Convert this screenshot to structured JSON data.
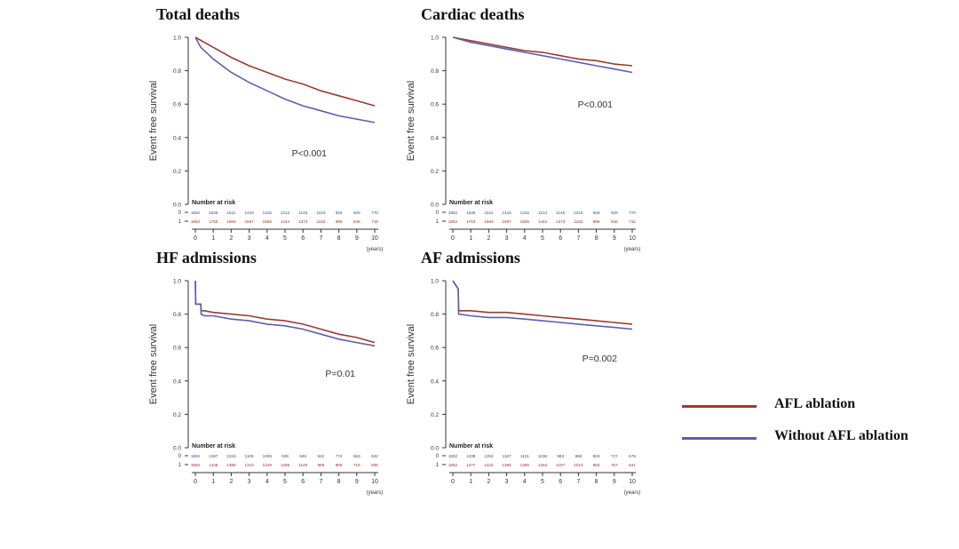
{
  "legend": {
    "items": [
      {
        "label": "AFL ablation",
        "color": "#9b3b2e"
      },
      {
        "label": "Without AFL ablation",
        "color": "#5a5fb0"
      }
    ]
  },
  "chart_data": [
    {
      "type": "line",
      "title": "Total deaths",
      "ylabel": "Event free survival",
      "xlabel": "(years)",
      "xlim": [
        0,
        10
      ],
      "ylim": [
        0,
        1
      ],
      "y_ticks": [
        "0.0",
        "0.2",
        "0.4",
        "0.6",
        "0.8",
        "1.0"
      ],
      "x_ticks": [
        "0",
        "1",
        "2",
        "3",
        "4",
        "5",
        "6",
        "7",
        "8",
        "9",
        "10"
      ],
      "p_value": "P<0.001",
      "series": [
        {
          "name": "AFL ablation",
          "color": "#9b3b2e",
          "x": [
            0,
            1,
            2,
            3,
            4,
            5,
            6,
            7,
            8,
            9,
            10
          ],
          "y": [
            1.0,
            0.94,
            0.88,
            0.83,
            0.79,
            0.75,
            0.72,
            0.68,
            0.65,
            0.62,
            0.59
          ]
        },
        {
          "name": "Without AFL ablation",
          "color": "#5a5fb0",
          "x": [
            0,
            0.3,
            1,
            2,
            3,
            4,
            5,
            6,
            7,
            8,
            9,
            10
          ],
          "y": [
            1.0,
            0.94,
            0.87,
            0.79,
            0.73,
            0.68,
            0.63,
            0.59,
            0.56,
            0.53,
            0.51,
            0.49
          ]
        }
      ],
      "risk": {
        "header": "Number at risk",
        "groups": [
          "0",
          "1"
        ],
        "rows": [
          [
            "1852",
            "1635",
            "1511",
            "1419",
            "1315",
            "1214",
            "1146",
            "1018",
            "926",
            "829",
            "770"
          ],
          [
            "1852",
            "1763",
            "1684",
            "1597",
            "1506",
            "1444",
            "1373",
            "1152",
            "996",
            "846",
            "716"
          ]
        ]
      }
    },
    {
      "type": "line",
      "title": "Cardiac deaths",
      "ylabel": "Event free survival",
      "xlabel": "(years)",
      "xlim": [
        0,
        10
      ],
      "ylim": [
        0,
        1
      ],
      "y_ticks": [
        "0.0",
        "0.2",
        "0.4",
        "0.6",
        "0.8",
        "1.0"
      ],
      "x_ticks": [
        "0",
        "1",
        "2",
        "3",
        "4",
        "5",
        "6",
        "7",
        "8",
        "9",
        "10"
      ],
      "p_value": "P<0.001",
      "series": [
        {
          "name": "AFL ablation",
          "color": "#9b3b2e",
          "x": [
            0,
            1,
            2,
            3,
            4,
            5,
            6,
            7,
            8,
            9,
            10
          ],
          "y": [
            1.0,
            0.98,
            0.96,
            0.94,
            0.92,
            0.91,
            0.89,
            0.87,
            0.86,
            0.84,
            0.83
          ]
        },
        {
          "name": "Without AFL ablation",
          "color": "#5a5fb0",
          "x": [
            0,
            1,
            2,
            3,
            4,
            5,
            6,
            7,
            8,
            9,
            10
          ],
          "y": [
            1.0,
            0.97,
            0.95,
            0.93,
            0.91,
            0.89,
            0.87,
            0.85,
            0.83,
            0.81,
            0.79
          ]
        }
      ],
      "risk": {
        "header": "Number at risk",
        "groups": [
          "0",
          "1"
        ],
        "rows": [
          [
            "1852",
            "1635",
            "1511",
            "1419",
            "1315",
            "1214",
            "1146",
            "1018",
            "926",
            "829",
            "770"
          ],
          [
            "1852",
            "1763",
            "1684",
            "1597",
            "1506",
            "1444",
            "1373",
            "1152",
            "996",
            "846",
            "716"
          ]
        ]
      }
    },
    {
      "type": "line",
      "title": "HF admissions",
      "ylabel": "Event free survival",
      "xlabel": "(years)",
      "xlim": [
        0,
        10
      ],
      "ylim": [
        0,
        1
      ],
      "y_ticks": [
        "0.0",
        "0.2",
        "0.4",
        "0.6",
        "0.8",
        "1.0"
      ],
      "x_ticks": [
        "0",
        "1",
        "2",
        "3",
        "4",
        "5",
        "6",
        "7",
        "8",
        "9",
        "10"
      ],
      "p_value": "P=0.01",
      "series": [
        {
          "name": "AFL ablation",
          "color": "#9b3b2e",
          "x": [
            0,
            0.02,
            0.3,
            0.32,
            0.5,
            1,
            2,
            3,
            4,
            5,
            6,
            7,
            8,
            9,
            10
          ],
          "y": [
            1.0,
            0.86,
            0.86,
            0.82,
            0.82,
            0.81,
            0.8,
            0.79,
            0.77,
            0.76,
            0.74,
            0.71,
            0.68,
            0.66,
            0.63
          ]
        },
        {
          "name": "Without AFL ablation",
          "color": "#5a5fb0",
          "x": [
            0,
            0.02,
            0.3,
            0.32,
            0.5,
            1,
            2,
            3,
            4,
            5,
            6,
            7,
            8,
            9,
            10
          ],
          "y": [
            1.0,
            0.86,
            0.86,
            0.8,
            0.79,
            0.79,
            0.77,
            0.76,
            0.74,
            0.73,
            0.71,
            0.68,
            0.65,
            0.63,
            0.61
          ]
        }
      ],
      "risk": {
        "header": "Number at risk",
        "groups": [
          "0",
          "1"
        ],
        "rows": [
          [
            "1852",
            "1397",
            "1215",
            "1109",
            "1009",
            "939",
            "845",
            "842",
            "774",
            "653",
            "642"
          ],
          [
            "1852",
            "1446",
            "1395",
            "1313",
            "1249",
            "1269",
            "1146",
            "969",
            "859",
            "716",
            "606"
          ]
        ]
      }
    },
    {
      "type": "line",
      "title": "AF admissions",
      "ylabel": "Event free survival",
      "xlabel": "(years)",
      "xlim": [
        0,
        10
      ],
      "ylim": [
        0,
        1
      ],
      "y_ticks": [
        "0.0",
        "0.2",
        "0.4",
        "0.6",
        "0.8",
        "1.0"
      ],
      "x_ticks": [
        "0",
        "1",
        "2",
        "3",
        "4",
        "5",
        "6",
        "7",
        "8",
        "9",
        "10"
      ],
      "p_value": "P=0.002",
      "series": [
        {
          "name": "AFL ablation",
          "color": "#9b3b2e",
          "x": [
            0,
            0.3,
            0.32,
            1,
            2,
            3,
            4,
            5,
            6,
            7,
            8,
            9,
            10
          ],
          "y": [
            1.0,
            0.95,
            0.82,
            0.82,
            0.81,
            0.81,
            0.8,
            0.79,
            0.78,
            0.77,
            0.76,
            0.75,
            0.74
          ]
        },
        {
          "name": "Without AFL ablation",
          "color": "#5a5fb0",
          "x": [
            0,
            0.3,
            0.32,
            1,
            2,
            3,
            4,
            5,
            6,
            7,
            8,
            9,
            10
          ],
          "y": [
            1.0,
            0.95,
            0.8,
            0.79,
            0.78,
            0.78,
            0.77,
            0.76,
            0.75,
            0.74,
            0.73,
            0.72,
            0.71
          ]
        }
      ],
      "risk": {
        "header": "Number at risk",
        "groups": [
          "0",
          "1"
        ],
        "rows": [
          [
            "1852",
            "1339",
            "1254",
            "1187",
            "1115",
            "1036",
            "963",
            "885",
            "803",
            "727",
            "679"
          ],
          [
            "1852",
            "1477",
            "1422",
            "1366",
            "1305",
            "1254",
            "1197",
            "1013",
            "883",
            "757",
            "641"
          ]
        ]
      }
    }
  ]
}
